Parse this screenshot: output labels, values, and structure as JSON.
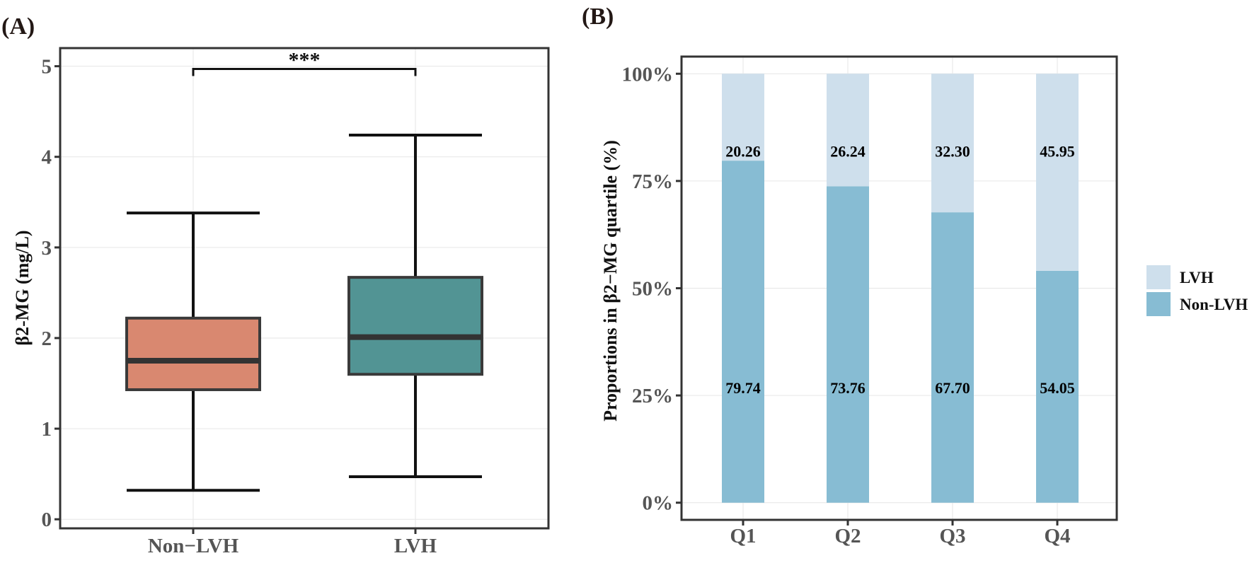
{
  "panels": {
    "a": {
      "label": "(A)"
    },
    "b": {
      "label": "(B)"
    }
  },
  "chart_data": [
    {
      "type": "boxplot",
      "ylabel": "β2-MG (mg/L)",
      "xlabel": "",
      "ylim": [
        -0.1,
        5.2
      ],
      "yticks": [
        0,
        1,
        2,
        3,
        4,
        5
      ],
      "grid": true,
      "categories": [
        "Non−LVH",
        "LVH"
      ],
      "boxes": [
        {
          "name": "Non−LVH",
          "whisker_low": 0.32,
          "q1": 1.43,
          "median": 1.75,
          "q3": 2.22,
          "whisker_high": 3.38
        },
        {
          "name": "LVH",
          "whisker_low": 0.47,
          "q1": 1.6,
          "median": 2.01,
          "q3": 2.67,
          "whisker_high": 4.24
        }
      ],
      "colors": {
        "Non−LVH": "#D98870",
        "LVH": "#529494"
      },
      "annotation": {
        "text": "***",
        "y": 4.97,
        "between": [
          "Non−LVH",
          "LVH"
        ]
      }
    },
    {
      "type": "stacked_bar",
      "ylabel": "Proportions in β2−MG quartile (%)",
      "xlabel": "",
      "ylim": [
        -4,
        104
      ],
      "ytick_values": [
        0,
        25,
        50,
        75,
        100
      ],
      "ytick_labels": [
        "0%",
        "25%",
        "50%",
        "75%",
        "100%"
      ],
      "grid": true,
      "categories": [
        "Q1",
        "Q2",
        "Q3",
        "Q4"
      ],
      "series": [
        {
          "name": "Non-LVH",
          "values": [
            79.74,
            73.76,
            67.7,
            54.05
          ],
          "labels": [
            "79.74",
            "73.76",
            "67.70",
            "54.05"
          ],
          "color": "#87BCD3"
        },
        {
          "name": "LVH",
          "values": [
            20.26,
            26.24,
            32.3,
            45.95
          ],
          "labels": [
            "20.26",
            "26.24",
            "32.30",
            "45.95"
          ],
          "color": "#CEDFEC"
        }
      ],
      "legend": {
        "position": "right",
        "entries": [
          "LVH",
          "Non-LVH"
        ]
      }
    }
  ]
}
